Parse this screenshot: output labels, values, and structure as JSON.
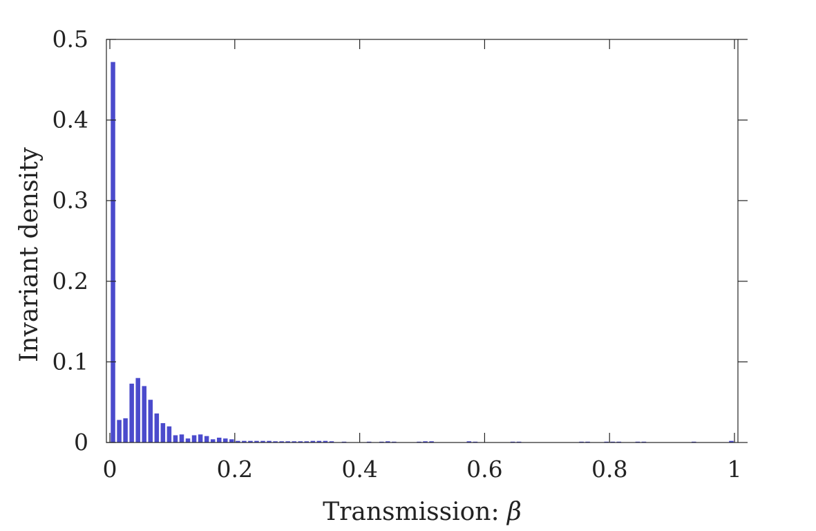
{
  "chart_data": {
    "type": "bar",
    "title": "",
    "xlabel": "Transmission: ",
    "xlabel_symbol": "β",
    "ylabel": "Invariant density",
    "xlim": [
      0,
      1
    ],
    "ylim": [
      0,
      0.5
    ],
    "grid": false,
    "bar_color": "#4b4bcc",
    "bin_width": 0.01,
    "x_ticks": [
      {
        "value": 0,
        "label": "0"
      },
      {
        "value": 0.2,
        "label": "0.2"
      },
      {
        "value": 0.4,
        "label": "0.4"
      },
      {
        "value": 0.6,
        "label": "0.6"
      },
      {
        "value": 0.8,
        "label": "0.8"
      },
      {
        "value": 1,
        "label": "1"
      }
    ],
    "y_ticks": [
      {
        "value": 0,
        "label": "0"
      },
      {
        "value": 0.1,
        "label": "0.1"
      },
      {
        "value": 0.2,
        "label": "0.2"
      },
      {
        "value": 0.3,
        "label": "0.3"
      },
      {
        "value": 0.4,
        "label": "0.4"
      },
      {
        "value": 0.5,
        "label": "0.5"
      }
    ],
    "x": [
      0.005,
      0.015,
      0.025,
      0.035,
      0.045,
      0.055,
      0.065,
      0.075,
      0.085,
      0.095,
      0.105,
      0.115,
      0.125,
      0.135,
      0.145,
      0.155,
      0.165,
      0.175,
      0.185,
      0.195,
      0.205,
      0.215,
      0.225,
      0.235,
      0.245,
      0.255,
      0.265,
      0.275,
      0.285,
      0.295,
      0.305,
      0.315,
      0.325,
      0.335,
      0.345,
      0.355,
      0.375,
      0.415,
      0.435,
      0.445,
      0.455,
      0.495,
      0.505,
      0.515,
      0.575,
      0.585,
      0.645,
      0.655,
      0.755,
      0.765,
      0.795,
      0.805,
      0.815,
      0.845,
      0.855,
      0.935,
      0.995
    ],
    "values": [
      0.472,
      0.028,
      0.03,
      0.073,
      0.08,
      0.07,
      0.053,
      0.036,
      0.024,
      0.02,
      0.009,
      0.01,
      0.005,
      0.009,
      0.01,
      0.008,
      0.004,
      0.006,
      0.005,
      0.004,
      0.002,
      0.002,
      0.002,
      0.002,
      0.002,
      0.002,
      0.0015,
      0.0015,
      0.0015,
      0.0015,
      0.0015,
      0.0015,
      0.002,
      0.002,
      0.002,
      0.0015,
      0.0008,
      0.0008,
      0.001,
      0.0015,
      0.001,
      0.001,
      0.0015,
      0.0015,
      0.0015,
      0.001,
      0.001,
      0.001,
      0.001,
      0.001,
      0.001,
      0.001,
      0.001,
      0.001,
      0.001,
      0.001,
      0.002
    ]
  }
}
